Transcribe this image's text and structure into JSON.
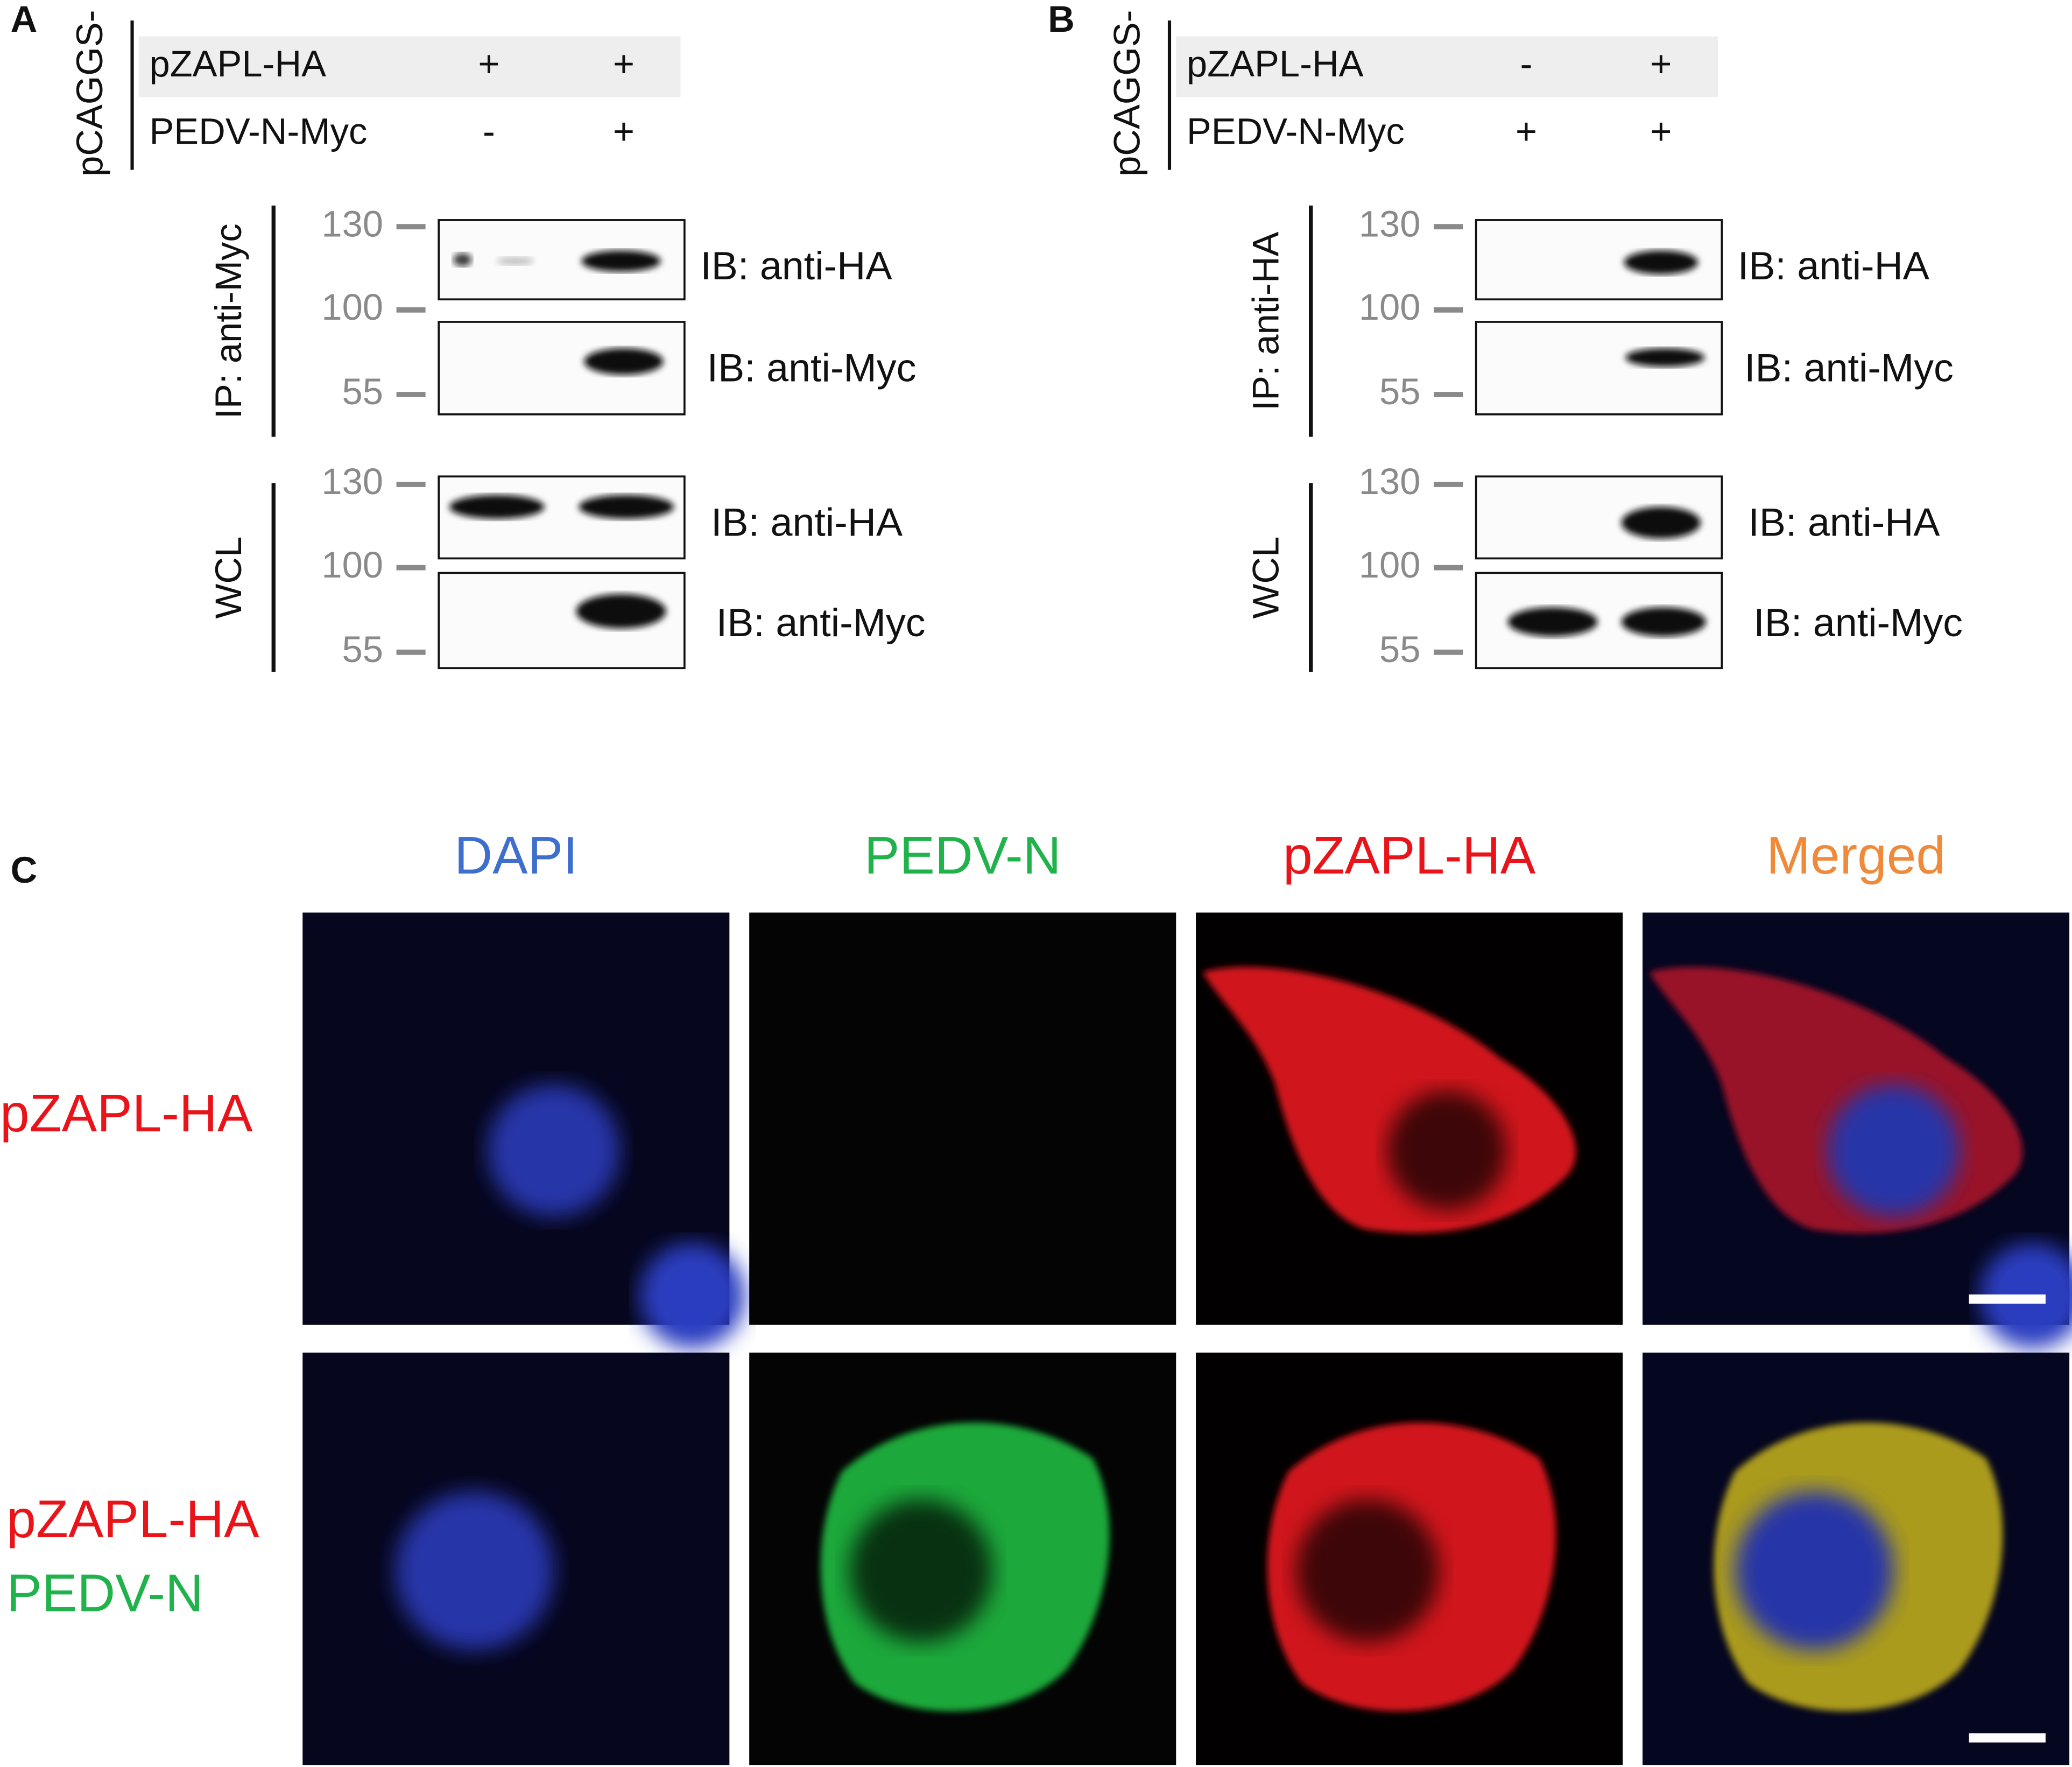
{
  "panels": [
    {
      "label": "A",
      "vector": "pCAGGS-",
      "conditions": [
        {
          "name": "pZAPL-HA",
          "lanes": [
            "+",
            "+"
          ]
        },
        {
          "name": "PEDV-N-Myc",
          "lanes": [
            "-",
            "+"
          ]
        }
      ],
      "sections": [
        {
          "label": "IP: anti-Myc",
          "markers": [
            130,
            100,
            55
          ],
          "blots": [
            "IB: anti-HA",
            "IB: anti-Myc"
          ]
        },
        {
          "label": "WCL",
          "markers": [
            130,
            100,
            55
          ],
          "blots": [
            "IB: anti-HA",
            "IB: anti-Myc"
          ]
        }
      ]
    },
    {
      "label": "B",
      "vector": "pCAGGS-",
      "conditions": [
        {
          "name": "pZAPL-HA",
          "lanes": [
            "-",
            "+"
          ]
        },
        {
          "name": "PEDV-N-Myc",
          "lanes": [
            "+",
            "+"
          ]
        }
      ],
      "sections": [
        {
          "label": "IP: anti-HA",
          "markers": [
            130,
            100,
            55
          ],
          "blots": [
            "IB: anti-HA",
            "IB: anti-Myc"
          ]
        },
        {
          "label": "WCL",
          "markers": [
            130,
            100,
            55
          ],
          "blots": [
            "IB: anti-HA",
            "IB: anti-Myc"
          ]
        }
      ]
    }
  ],
  "imaging": {
    "label": "C",
    "channels": [
      "DAPI",
      "PEDV-N",
      "pZAPL-HA",
      "Merged"
    ],
    "rows": [
      [
        "pZAPL-HA"
      ],
      [
        "pZAPL-HA",
        "PEDV-N"
      ]
    ]
  }
}
